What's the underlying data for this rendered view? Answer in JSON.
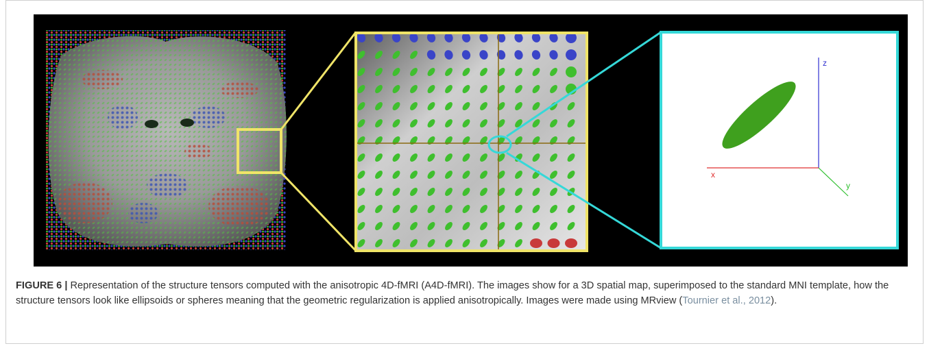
{
  "figure": {
    "panel3": {
      "axis_z": "z",
      "axis_x": "x",
      "axis_y": "y"
    },
    "colors": {
      "background": "#000000",
      "zoom_box_1": "#f0e468",
      "zoom_box_2": "#35d8d8",
      "tensor_green": "#3fbf2e",
      "tensor_blue": "#3a44c8",
      "tensor_red": "#c83a3a",
      "axis_x": "#e03030",
      "axis_y": "#30c030",
      "axis_z": "#3030d0"
    }
  },
  "caption": {
    "label": "FIGURE 6 |",
    "text": " Representation of the structure tensors computed with the anisotropic 4D-fMRI (A4D-fMRI). The images show for a 3D spatial map, superimposed to the standard MNI template, how the structure tensors look like ellipsoids or spheres meaning that the geometric regularization is applied anisotropically. Images were made using MRview (",
    "citation": "Tournier et al., 2012",
    "suffix": ")."
  }
}
